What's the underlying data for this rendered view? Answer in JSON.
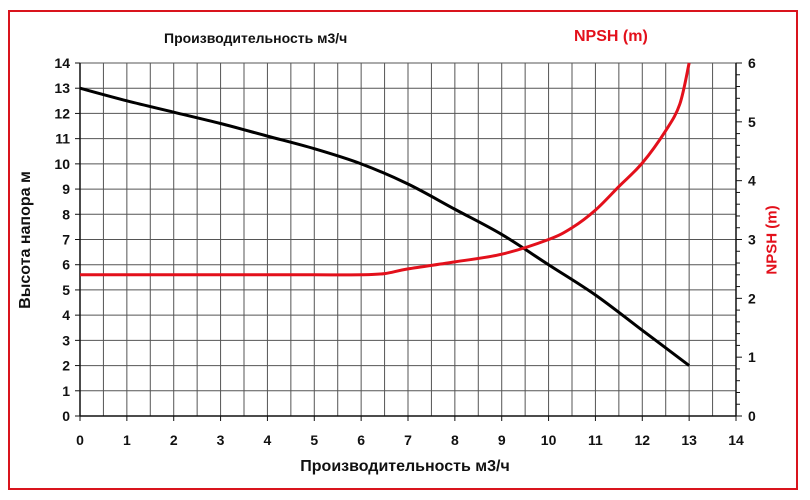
{
  "chart_data": {
    "type": "line",
    "title_left": "Производительность м3/ч",
    "title_right": "NPSH (m)",
    "xlabel": "Производительность м3/ч",
    "ylabel": "Высота напора м",
    "y2label": "NPSH (m)",
    "xlim": [
      0,
      14
    ],
    "ylim": [
      0,
      14
    ],
    "y2lim": [
      0,
      6
    ],
    "x_ticks": [
      0,
      1,
      2,
      3,
      4,
      5,
      6,
      7,
      8,
      9,
      10,
      11,
      12,
      13,
      14
    ],
    "y_ticks": [
      0,
      1,
      2,
      3,
      4,
      5,
      6,
      7,
      8,
      9,
      10,
      11,
      12,
      13,
      14
    ],
    "y2_ticks": [
      0,
      1,
      2,
      3,
      4,
      5,
      6
    ],
    "grid": true,
    "series": [
      {
        "name": "Высота напора",
        "axis": "left",
        "color": "#000000",
        "x": [
          0,
          1,
          2,
          3,
          4,
          5,
          6,
          7,
          8,
          9,
          10,
          11,
          12,
          13
        ],
        "values": [
          13.0,
          12.5,
          12.05,
          11.6,
          11.1,
          10.6,
          10.0,
          9.2,
          8.2,
          7.2,
          6.0,
          4.8,
          3.4,
          2.0
        ]
      },
      {
        "name": "NPSH (m)",
        "axis": "right",
        "color": "#e3101b",
        "x": [
          0,
          1,
          2,
          3,
          4,
          5,
          6,
          6.5,
          7,
          8,
          9,
          10,
          10.5,
          11,
          11.5,
          12,
          12.5,
          12.8,
          13
        ],
        "values": [
          2.4,
          2.4,
          2.4,
          2.4,
          2.4,
          2.4,
          2.4,
          2.42,
          2.5,
          2.62,
          2.75,
          3.0,
          3.2,
          3.5,
          3.9,
          4.3,
          4.85,
          5.3,
          6.0
        ]
      }
    ]
  }
}
